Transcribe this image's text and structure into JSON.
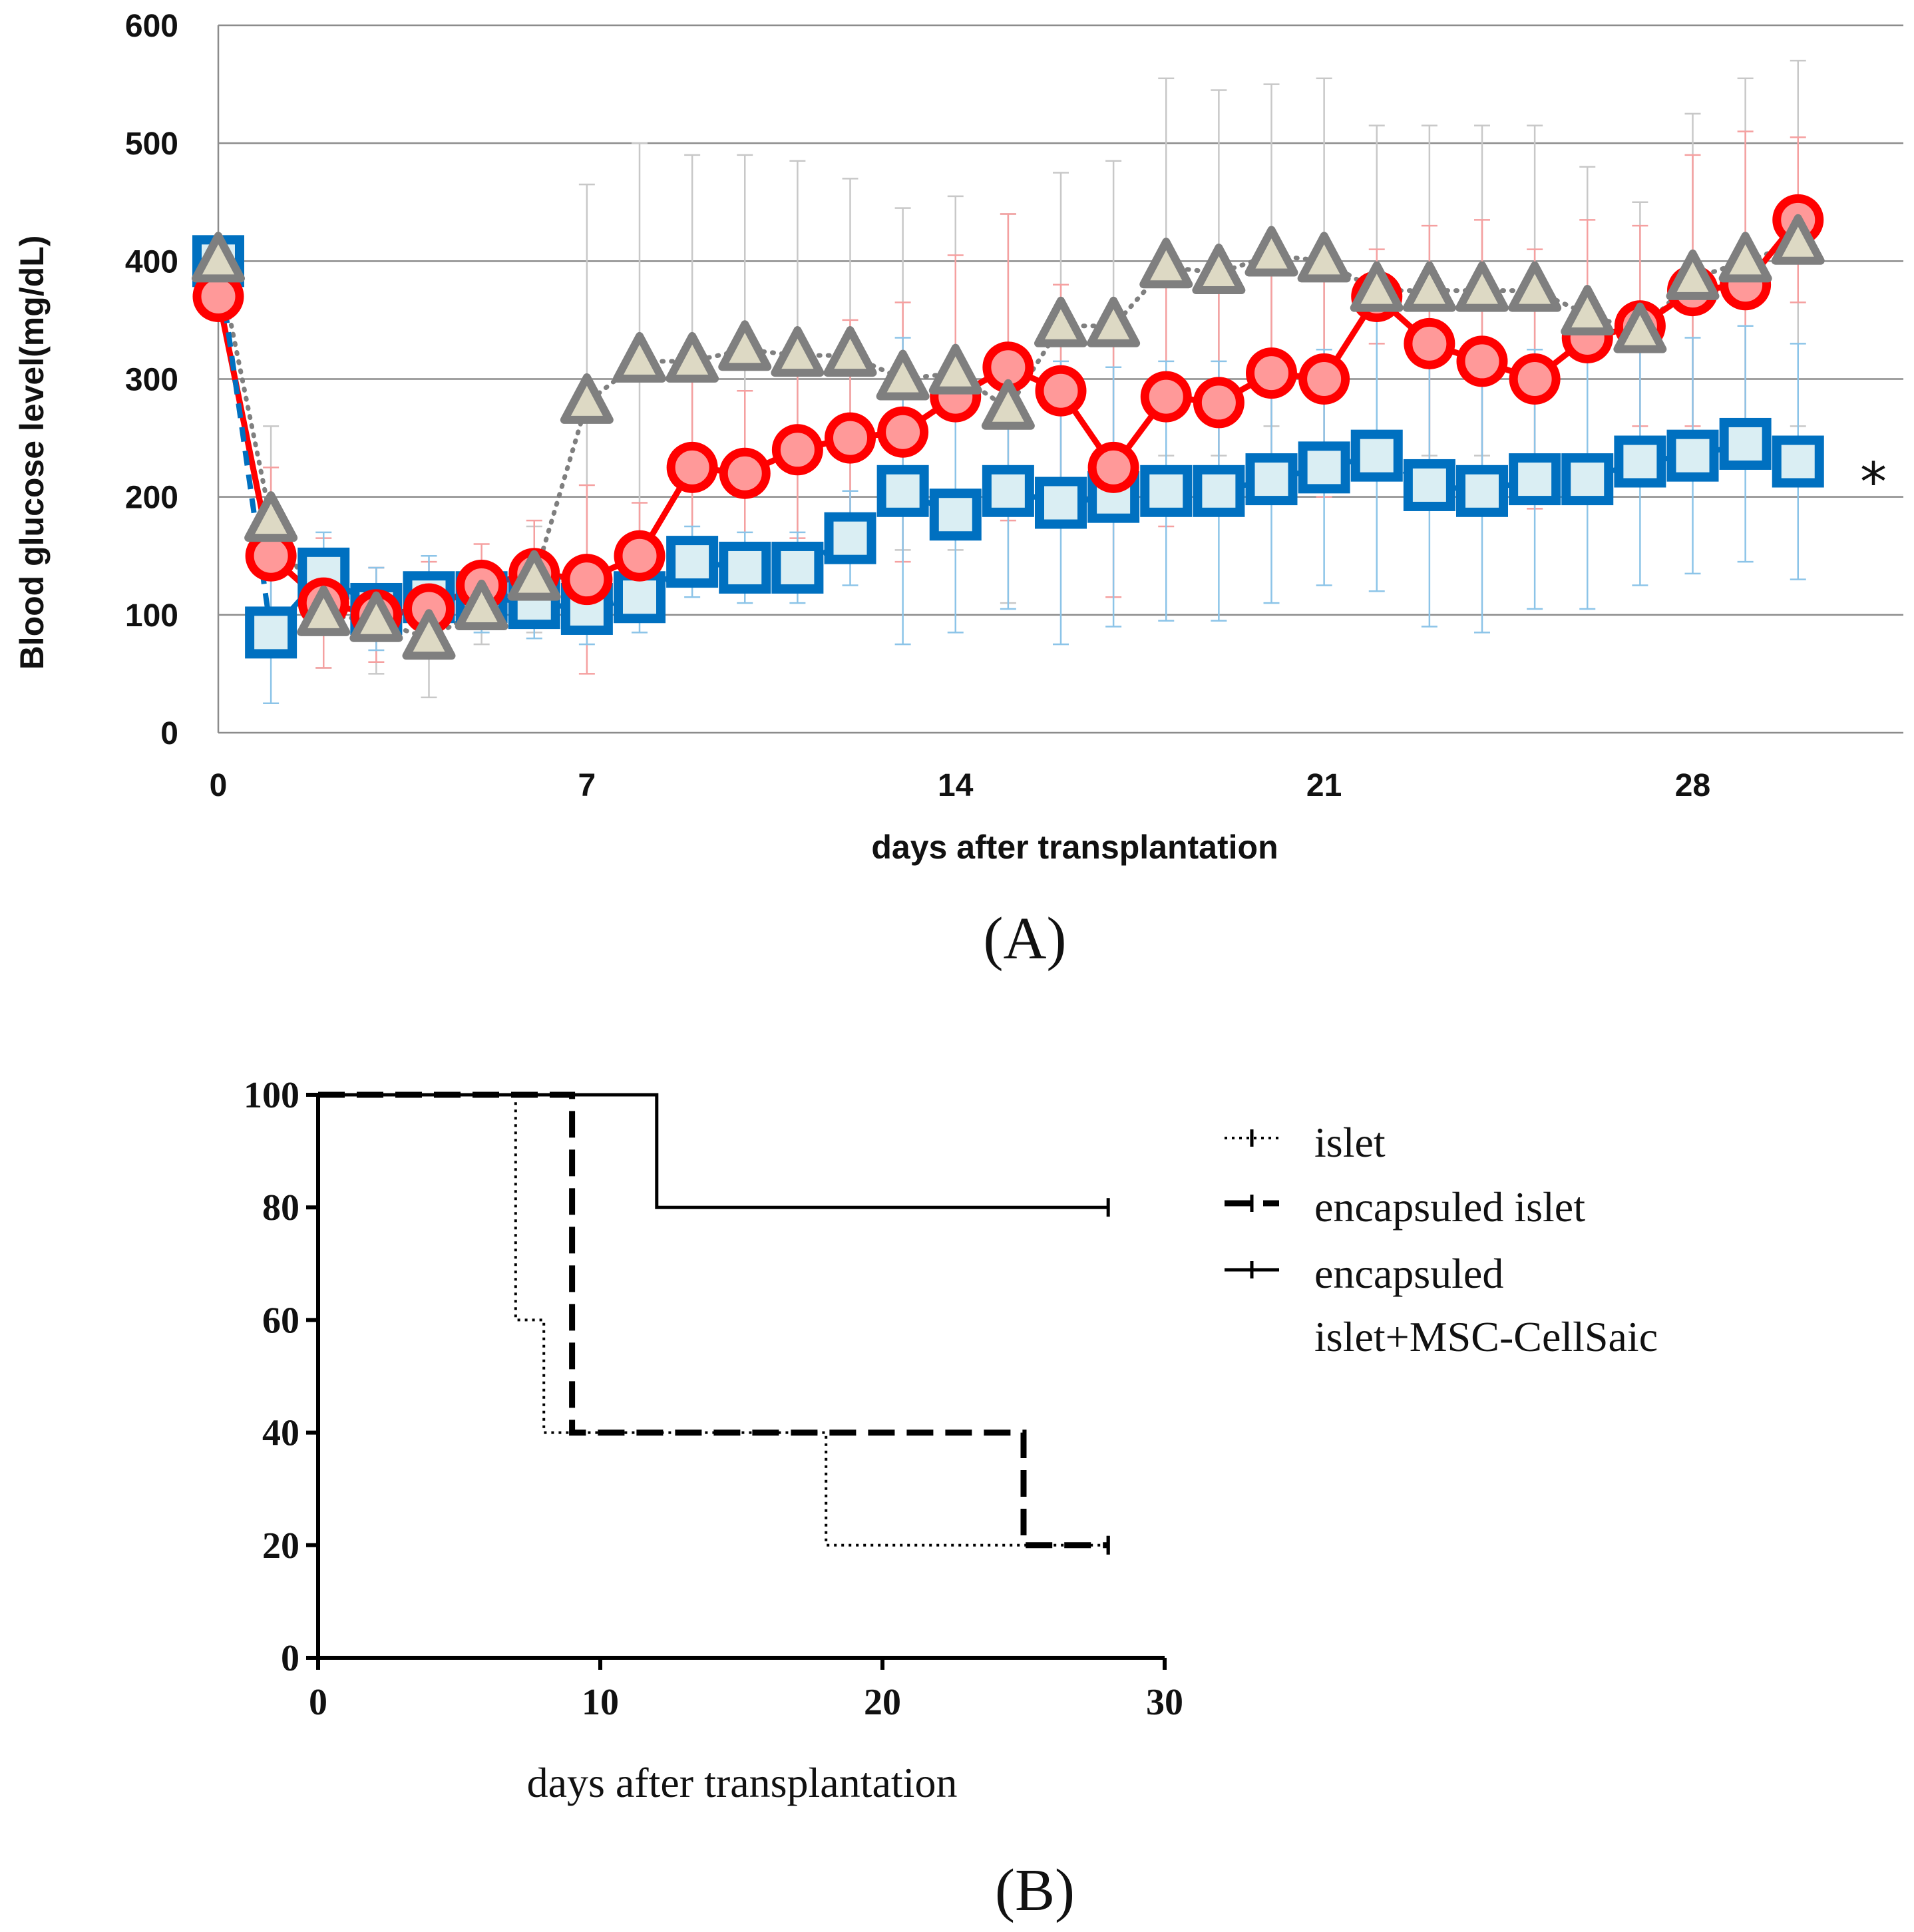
{
  "chart_data": [
    {
      "type": "line",
      "panel_label": "(A)",
      "xlabel": "days after transplantation",
      "ylabel": "Blood glucose level(mg/dL)",
      "xlim": [
        0,
        32
      ],
      "ylim": [
        0,
        600
      ],
      "xticks": [
        0,
        7,
        14,
        21,
        28
      ],
      "yticks": [
        0,
        100,
        200,
        300,
        400,
        500,
        600
      ],
      "grid": true,
      "annotation": "*",
      "series": [
        {
          "name": "islet",
          "marker": "triangle",
          "line": "dotted",
          "color": "#7f7f7f",
          "fill": "#ddd9c4",
          "x": [
            0,
            1,
            2,
            3,
            4,
            5,
            6,
            7,
            8,
            9,
            10,
            11,
            12,
            13,
            14,
            15,
            16,
            17,
            18,
            19,
            20,
            21,
            22,
            23,
            24,
            25,
            26,
            27,
            28,
            29,
            30
          ],
          "y": [
            400,
            180,
            100,
            95,
            80,
            105,
            130,
            280,
            315,
            315,
            325,
            320,
            320,
            300,
            305,
            275,
            345,
            345,
            395,
            390,
            405,
            400,
            375,
            375,
            375,
            375,
            355,
            340,
            385,
            400,
            415
          ],
          "err": [
            0,
            80,
            45,
            45,
            50,
            30,
            45,
            185,
            185,
            175,
            165,
            165,
            150,
            145,
            150,
            165,
            130,
            140,
            160,
            155,
            145,
            155,
            140,
            140,
            140,
            140,
            125,
            110,
            140,
            155,
            155
          ]
        },
        {
          "name": "encapsuled islet",
          "marker": "circle",
          "line": "solid",
          "color": "#ff0000",
          "fill": "#ff9999",
          "x": [
            0,
            1,
            2,
            3,
            4,
            5,
            6,
            7,
            8,
            9,
            10,
            11,
            12,
            13,
            14,
            15,
            16,
            17,
            18,
            19,
            20,
            21,
            22,
            23,
            24,
            25,
            26,
            27,
            28,
            29,
            30
          ],
          "y": [
            370,
            150,
            110,
            100,
            105,
            125,
            135,
            130,
            150,
            225,
            220,
            240,
            250,
            255,
            285,
            310,
            290,
            225,
            285,
            280,
            305,
            300,
            370,
            330,
            315,
            300,
            335,
            345,
            375,
            380,
            435
          ],
          "err": [
            0,
            75,
            55,
            40,
            40,
            35,
            45,
            80,
            45,
            90,
            70,
            75,
            100,
            110,
            120,
            130,
            90,
            110,
            110,
            95,
            110,
            100,
            40,
            100,
            120,
            110,
            100,
            85,
            115,
            130,
            70
          ]
        },
        {
          "name": "encapsuled islet+MSC-CellSaic",
          "marker": "square",
          "line": "dashed",
          "color": "#0070c0",
          "fill": "#daeef3",
          "x": [
            0,
            1,
            2,
            3,
            4,
            5,
            6,
            7,
            8,
            9,
            10,
            11,
            12,
            13,
            14,
            15,
            16,
            17,
            18,
            19,
            20,
            21,
            22,
            23,
            24,
            25,
            26,
            27,
            28,
            29,
            30
          ],
          "y": [
            400,
            85,
            135,
            105,
            115,
            115,
            110,
            105,
            115,
            145,
            140,
            140,
            165,
            205,
            185,
            205,
            195,
            200,
            205,
            205,
            215,
            225,
            235,
            210,
            205,
            215,
            215,
            230,
            235,
            245,
            230
          ],
          "err": [
            0,
            60,
            35,
            35,
            35,
            30,
            30,
            30,
            30,
            30,
            30,
            30,
            40,
            130,
            100,
            100,
            120,
            110,
            110,
            110,
            105,
            100,
            115,
            120,
            120,
            110,
            110,
            105,
            100,
            100,
            100
          ]
        }
      ]
    },
    {
      "type": "line",
      "subtype": "step",
      "panel_label": "(B)",
      "xlabel": "days after transplantation",
      "ylabel": "",
      "xlim": [
        0,
        30
      ],
      "ylim": [
        0,
        100
      ],
      "xticks": [
        0,
        10,
        20,
        30
      ],
      "yticks": [
        0,
        20,
        40,
        60,
        80,
        100
      ],
      "grid": false,
      "legend_position": "top-right",
      "series": [
        {
          "name": "islet",
          "style": "dotted",
          "x": [
            0,
            7,
            7,
            8,
            8,
            18,
            18,
            28
          ],
          "y": [
            100,
            100,
            60,
            60,
            40,
            40,
            20,
            20
          ]
        },
        {
          "name": "encapsuled islet",
          "style": "dashed",
          "x": [
            0,
            9,
            9,
            25,
            25,
            28
          ],
          "y": [
            100,
            100,
            40,
            40,
            20,
            20
          ]
        },
        {
          "name": "encapsuled islet+MSC-CellSaic",
          "style": "solid",
          "x": [
            0,
            12,
            12,
            28
          ],
          "y": [
            100,
            100,
            80,
            80
          ]
        }
      ]
    }
  ],
  "legend": {
    "islet": "islet",
    "encapsuled_islet": "encapsuled islet",
    "msc_line1": "encapsuled",
    "msc_line2": "islet+MSC-CellSaic"
  }
}
